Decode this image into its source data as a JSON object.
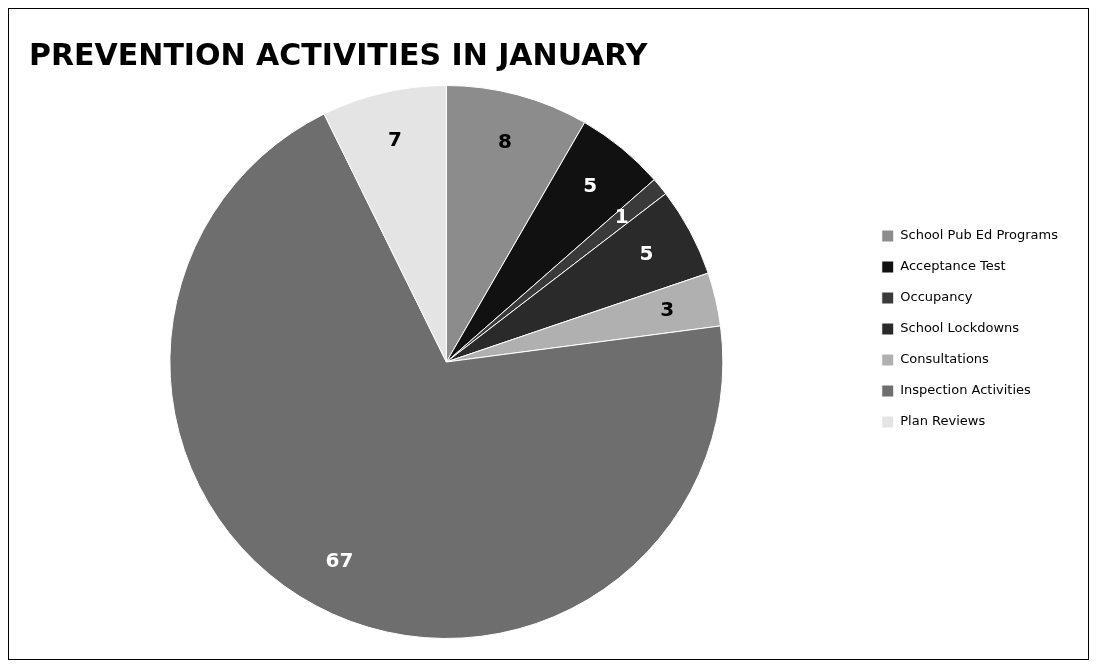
{
  "chart_data": {
    "type": "pie",
    "title": "PREVENTION ACTIVITIES IN JANUARY",
    "categories": [
      "School Pub Ed Programs",
      "Acceptance Test",
      "Occupancy",
      "School Lockdowns",
      "Consultations",
      "Inspection Activities",
      "Plan Reviews"
    ],
    "values": [
      8,
      5,
      1,
      5,
      3,
      67,
      7
    ],
    "colors": [
      "#8c8c8c",
      "#111111",
      "#3a3a3a",
      "#2a2a2a",
      "#b0b0b0",
      "#6e6e6e",
      "#e4e4e4"
    ],
    "data_labels": true,
    "legend": "right"
  }
}
